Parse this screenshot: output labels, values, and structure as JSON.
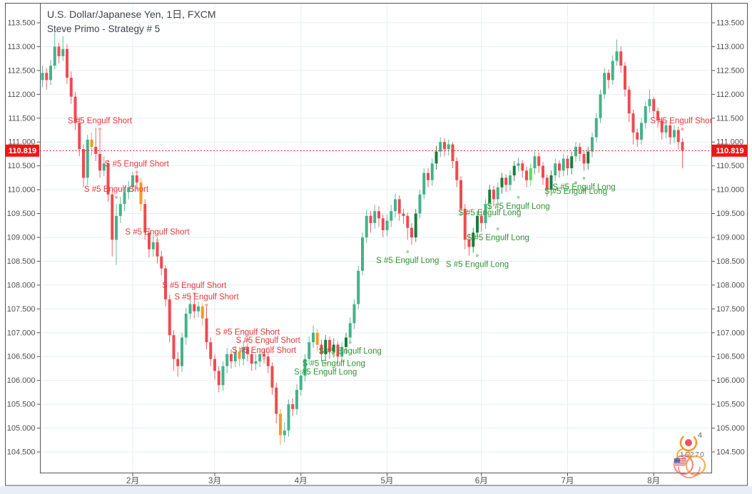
{
  "header": {
    "title": "U.S. Dollar/Japanese Yen, 1日, FXCM",
    "subtitle": "Steve Primo - Strategy # 5"
  },
  "current_price": {
    "value": "110.819",
    "price": 110.819
  },
  "price_scale": {
    "labels": [
      "113.500",
      "113.000",
      "112.500",
      "112.000",
      "111.500",
      "111.000",
      "110.500",
      "110.000",
      "109.500",
      "109.000",
      "108.500",
      "108.000",
      "107.500",
      "107.000",
      "106.500",
      "106.000",
      "105.500",
      "105.000",
      "104.500"
    ],
    "values": [
      113.5,
      113.0,
      112.5,
      112.0,
      111.5,
      111.0,
      110.5,
      110.0,
      109.5,
      109.0,
      108.5,
      108.0,
      107.5,
      107.0,
      106.5,
      106.0,
      105.5,
      105.0,
      104.5
    ]
  },
  "time_scale": {
    "months": [
      {
        "label": "2月",
        "index": 22
      },
      {
        "label": "3月",
        "index": 42
      },
      {
        "label": "4月",
        "index": 63
      },
      {
        "label": "5月",
        "index": 84
      },
      {
        "label": "6月",
        "index": 107
      },
      {
        "label": "7月",
        "index": 128
      },
      {
        "label": "8月",
        "index": 149
      }
    ]
  },
  "badges": {
    "top_count": "4",
    "bottom_count": "16270"
  },
  "colors": {
    "up": "#42b389",
    "down": "#ef4a50",
    "signal_short_candle": "#ff9625",
    "signal_long_candle": "#1a7d3a",
    "signal_long_bright": "#53e051",
    "label_short": "#e83737",
    "label_long": "#2d9431",
    "dot_short": "#f0aaaa",
    "dot_long": "#9fd3a5",
    "grid": "#e7edf3",
    "frame": "#53565c",
    "axis_text": "#4f4f4f",
    "price_line": "#f21616",
    "tag_bg": "#f01616",
    "tag_text": "#ffffff",
    "strip": "#e8eef7",
    "badge_orange": "#f59a23",
    "badge_red": "#ef5164",
    "badge_coral": "#f2766b",
    "badge_text": "#6b6b6b",
    "flag_blue": "#3c5ba0"
  },
  "chart_data": {
    "type": "candlestick",
    "symbol": "U.S. Dollar/Japanese Yen",
    "interval": "1日",
    "exchange": "FXCM",
    "indicator": "Steve Primo - Strategy # 5",
    "ylim": [
      104.07,
      113.77
    ],
    "grid": true,
    "short_label": "S #5 Engulf Short",
    "long_label": "S #5 Engulf Long",
    "candles": [
      [
        112.3,
        112.6,
        112.15,
        112.45
      ],
      [
        112.45,
        112.55,
        112.1,
        112.3
      ],
      [
        112.3,
        112.72,
        112.2,
        112.6
      ],
      [
        112.6,
        113.3,
        112.52,
        113.0
      ],
      [
        113.0,
        113.08,
        112.65,
        112.8
      ],
      [
        112.8,
        113.22,
        112.7,
        112.95
      ],
      [
        112.95,
        113.05,
        112.22,
        112.35
      ],
      [
        112.35,
        112.48,
        111.8,
        111.95
      ],
      [
        111.95,
        112.05,
        111.25,
        111.4
      ],
      [
        111.4,
        111.52,
        110.7,
        110.85
      ],
      [
        110.85,
        110.95,
        110.05,
        110.25
      ],
      [
        110.25,
        111.15,
        110.1,
        111.05
      ],
      [
        111.05,
        111.2,
        110.72,
        110.9,
        "o"
      ],
      [
        110.9,
        111.3,
        110.6,
        110.75
      ],
      [
        110.75,
        111.25,
        110.25,
        110.4
      ],
      [
        110.4,
        110.7,
        110.28,
        110.55
      ],
      [
        110.55,
        110.62,
        109.75,
        109.9
      ],
      [
        109.9,
        110.0,
        108.6,
        108.95
      ],
      [
        108.95,
        109.7,
        108.42,
        109.45
      ],
      [
        109.45,
        109.85,
        109.3,
        109.7
      ],
      [
        109.7,
        110.05,
        109.55,
        109.95
      ],
      [
        109.95,
        110.18,
        109.8,
        110.05
      ],
      [
        110.05,
        110.38,
        109.95,
        110.3
      ],
      [
        110.3,
        110.35,
        110.0,
        110.15
      ],
      [
        110.15,
        110.25,
        109.55,
        109.7,
        "o"
      ],
      [
        109.7,
        109.8,
        108.95,
        109.1
      ],
      [
        109.1,
        109.2,
        108.58,
        108.75
      ],
      [
        108.75,
        109.05,
        108.6,
        108.9
      ],
      [
        108.9,
        109.0,
        108.45,
        108.6
      ],
      [
        108.6,
        108.72,
        108.2,
        108.35
      ],
      [
        108.35,
        108.42,
        107.55,
        107.7
      ],
      [
        107.7,
        107.8,
        106.8,
        106.95
      ],
      [
        106.95,
        107.05,
        106.2,
        106.45
      ],
      [
        106.45,
        106.6,
        106.08,
        106.3
      ],
      [
        106.3,
        107.0,
        106.18,
        106.9
      ],
      [
        106.9,
        107.52,
        106.75,
        107.4
      ],
      [
        107.4,
        107.8,
        107.28,
        107.6
      ],
      [
        107.6,
        107.72,
        107.3,
        107.45
      ],
      [
        107.45,
        107.65,
        107.32,
        107.55
      ],
      [
        107.55,
        107.62,
        107.15,
        107.3,
        "o"
      ],
      [
        107.3,
        107.55,
        106.65,
        106.8
      ],
      [
        106.8,
        106.9,
        106.3,
        106.45
      ],
      [
        106.45,
        106.55,
        106.02,
        106.2
      ],
      [
        106.2,
        106.3,
        105.75,
        105.9
      ],
      [
        105.9,
        106.4,
        105.78,
        106.3
      ],
      [
        106.3,
        106.68,
        106.15,
        106.55
      ],
      [
        106.55,
        106.65,
        106.25,
        106.4
      ],
      [
        106.4,
        106.72,
        106.28,
        106.6
      ],
      [
        106.6,
        106.7,
        106.3,
        106.45,
        "o"
      ],
      [
        106.45,
        106.82,
        106.32,
        106.7
      ],
      [
        106.7,
        106.78,
        106.4,
        106.55
      ],
      [
        106.55,
        106.62,
        106.2,
        106.35
      ],
      [
        106.35,
        106.55,
        106.22,
        106.4
      ],
      [
        106.4,
        106.68,
        106.28,
        106.55
      ],
      [
        106.55,
        106.65,
        106.35,
        106.5
      ],
      [
        106.5,
        106.58,
        106.15,
        106.3
      ],
      [
        106.3,
        106.38,
        105.7,
        105.85
      ],
      [
        105.85,
        105.95,
        105.1,
        105.3
      ],
      [
        105.3,
        105.4,
        104.65,
        104.85,
        "o"
      ],
      [
        104.85,
        105.12,
        104.7,
        104.95
      ],
      [
        104.95,
        105.6,
        104.82,
        105.5
      ],
      [
        105.5,
        105.62,
        105.25,
        105.4
      ],
      [
        105.4,
        105.92,
        105.28,
        105.8
      ],
      [
        105.8,
        106.22,
        105.68,
        106.1
      ],
      [
        106.1,
        106.55,
        105.98,
        106.45
      ],
      [
        106.45,
        106.92,
        106.32,
        106.8
      ],
      [
        106.8,
        107.15,
        106.68,
        107.0
      ],
      [
        107.0,
        107.08,
        106.6,
        106.75,
        "o"
      ],
      [
        106.75,
        106.85,
        106.4,
        106.55
      ],
      [
        106.55,
        106.95,
        106.42,
        106.85,
        "d"
      ],
      [
        106.85,
        106.92,
        106.45,
        106.6
      ],
      [
        106.6,
        106.88,
        106.48,
        106.75,
        "d"
      ],
      [
        106.75,
        106.82,
        106.35,
        106.5
      ],
      [
        106.5,
        106.8,
        106.38,
        106.7
      ],
      [
        106.7,
        107.0,
        106.55,
        106.9,
        "d"
      ],
      [
        106.9,
        107.32,
        106.78,
        107.2
      ],
      [
        107.2,
        107.7,
        107.08,
        107.6
      ],
      [
        107.6,
        108.4,
        107.5,
        108.3
      ],
      [
        108.3,
        109.1,
        108.2,
        109.0
      ],
      [
        109.0,
        109.58,
        108.88,
        109.45
      ],
      [
        109.45,
        109.55,
        109.1,
        109.3
      ],
      [
        109.3,
        109.68,
        109.18,
        109.55
      ],
      [
        109.55,
        109.65,
        109.22,
        109.4
      ],
      [
        109.4,
        109.48,
        109.0,
        109.15
      ],
      [
        109.15,
        109.48,
        109.02,
        109.35
      ],
      [
        109.35,
        109.68,
        109.22,
        109.55
      ],
      [
        109.55,
        109.92,
        109.42,
        109.8
      ],
      [
        109.8,
        109.88,
        109.35,
        109.5
      ],
      [
        109.5,
        109.6,
        109.28,
        109.45
      ],
      [
        109.45,
        109.52,
        108.95,
        109.2
      ],
      [
        109.2,
        109.3,
        108.85,
        109.0
      ],
      [
        109.0,
        109.6,
        108.9,
        109.5,
        "d"
      ],
      [
        109.5,
        110.0,
        109.4,
        109.9
      ],
      [
        109.9,
        110.45,
        109.8,
        110.35
      ],
      [
        110.35,
        110.45,
        110.05,
        110.2
      ],
      [
        110.2,
        110.65,
        110.08,
        110.55
      ],
      [
        110.55,
        110.92,
        110.42,
        110.8,
        "d"
      ],
      [
        110.8,
        111.1,
        110.68,
        111.0
      ],
      [
        111.0,
        111.08,
        110.7,
        110.85
      ],
      [
        110.85,
        111.05,
        110.72,
        110.95
      ],
      [
        110.95,
        111.0,
        110.45,
        110.6
      ],
      [
        110.6,
        110.68,
        110.05,
        110.2
      ],
      [
        110.2,
        110.28,
        109.45,
        109.6
      ],
      [
        109.6,
        109.7,
        108.75,
        108.95
      ],
      [
        108.95,
        109.08,
        108.62,
        108.8
      ],
      [
        108.8,
        109.2,
        108.68,
        109.1,
        "d"
      ],
      [
        109.1,
        109.55,
        108.98,
        109.45,
        "d"
      ],
      [
        109.45,
        109.55,
        109.12,
        109.3
      ],
      [
        109.3,
        109.8,
        109.18,
        109.7
      ],
      [
        109.7,
        110.1,
        109.58,
        110.0,
        "d"
      ],
      [
        110.0,
        110.08,
        109.65,
        109.8
      ],
      [
        109.8,
        110.15,
        109.68,
        110.05
      ],
      [
        110.05,
        110.35,
        109.92,
        110.25,
        "d"
      ],
      [
        110.25,
        110.32,
        109.95,
        110.1
      ],
      [
        110.1,
        110.4,
        109.98,
        110.3
      ],
      [
        110.3,
        110.6,
        110.18,
        110.5,
        "d"
      ],
      [
        110.5,
        110.68,
        110.38,
        110.55
      ],
      [
        110.55,
        110.62,
        110.25,
        110.4
      ],
      [
        110.4,
        110.48,
        110.05,
        110.2
      ],
      [
        110.2,
        110.55,
        110.08,
        110.45,
        "b"
      ],
      [
        110.45,
        110.8,
        110.32,
        110.7
      ],
      [
        110.7,
        110.78,
        110.35,
        110.5
      ],
      [
        110.5,
        110.58,
        110.1,
        110.25
      ],
      [
        110.25,
        110.32,
        109.85,
        110.0
      ],
      [
        110.0,
        110.4,
        109.88,
        110.3,
        "d"
      ],
      [
        110.3,
        110.65,
        110.18,
        110.55
      ],
      [
        110.55,
        110.62,
        110.25,
        110.4
      ],
      [
        110.4,
        110.75,
        110.28,
        110.65
      ],
      [
        110.65,
        110.72,
        110.3,
        110.45
      ],
      [
        110.45,
        110.8,
        110.32,
        110.7,
        "d"
      ],
      [
        110.7,
        111.0,
        110.58,
        110.9
      ],
      [
        110.9,
        110.98,
        110.6,
        110.75
      ],
      [
        110.75,
        110.82,
        110.4,
        110.55
      ],
      [
        110.55,
        110.9,
        110.42,
        110.8,
        "d"
      ],
      [
        110.8,
        111.2,
        110.68,
        111.1
      ],
      [
        111.1,
        111.6,
        111.0,
        111.5
      ],
      [
        111.5,
        112.1,
        111.4,
        112.0
      ],
      [
        112.0,
        112.55,
        111.9,
        112.45
      ],
      [
        112.45,
        112.52,
        112.12,
        112.3
      ],
      [
        112.3,
        112.82,
        112.2,
        112.7
      ],
      [
        112.7,
        113.15,
        112.6,
        112.9
      ],
      [
        112.9,
        113.0,
        112.45,
        112.6
      ],
      [
        112.6,
        112.68,
        111.95,
        112.1
      ],
      [
        112.1,
        112.18,
        111.42,
        111.6
      ],
      [
        111.6,
        111.68,
        110.95,
        111.2
      ],
      [
        111.2,
        111.28,
        110.9,
        111.05
      ],
      [
        111.05,
        111.5,
        110.95,
        111.4
      ],
      [
        111.4,
        111.85,
        111.28,
        111.75
      ],
      [
        111.75,
        112.1,
        111.62,
        111.9
      ],
      [
        111.9,
        111.95,
        111.5,
        111.65
      ],
      [
        111.65,
        111.72,
        111.3,
        111.45
      ],
      [
        111.45,
        111.52,
        111.05,
        111.2
      ],
      [
        111.2,
        111.45,
        111.08,
        111.35
      ],
      [
        111.35,
        111.42,
        110.95,
        111.1
      ],
      [
        111.1,
        111.35,
        110.98,
        111.25
      ],
      [
        111.25,
        111.32,
        110.85,
        111.0
      ],
      [
        111.0,
        111.08,
        110.45,
        110.82
      ]
    ],
    "markers": [
      {
        "index": 14,
        "price": 111.45,
        "side": "short"
      },
      {
        "index": 18,
        "price": 110.02,
        "side": "short"
      },
      {
        "index": 23,
        "price": 110.55,
        "side": "short"
      },
      {
        "index": 28,
        "price": 109.12,
        "side": "short"
      },
      {
        "index": 37,
        "price": 108.0,
        "side": "short"
      },
      {
        "index": 40,
        "price": 107.76,
        "side": "short"
      },
      {
        "index": 50,
        "price": 107.02,
        "side": "short"
      },
      {
        "index": 54,
        "price": 106.64,
        "side": "short"
      },
      {
        "index": 55,
        "price": 106.85,
        "side": "short"
      },
      {
        "index": 156,
        "price": 111.45,
        "side": "short"
      },
      {
        "index": 69,
        "price": 106.18,
        "side": "long"
      },
      {
        "index": 71,
        "price": 106.36,
        "side": "long"
      },
      {
        "index": 75,
        "price": 106.62,
        "side": "long"
      },
      {
        "index": 89,
        "price": 108.52,
        "side": "long"
      },
      {
        "index": 106,
        "price": 108.44,
        "side": "long"
      },
      {
        "index": 109,
        "price": 109.52,
        "side": "long"
      },
      {
        "index": 111,
        "price": 109.0,
        "side": "long"
      },
      {
        "index": 116,
        "price": 109.66,
        "side": "long"
      },
      {
        "index": 130,
        "price": 109.97,
        "side": "long"
      },
      {
        "index": 132,
        "price": 110.06,
        "side": "long"
      }
    ]
  }
}
